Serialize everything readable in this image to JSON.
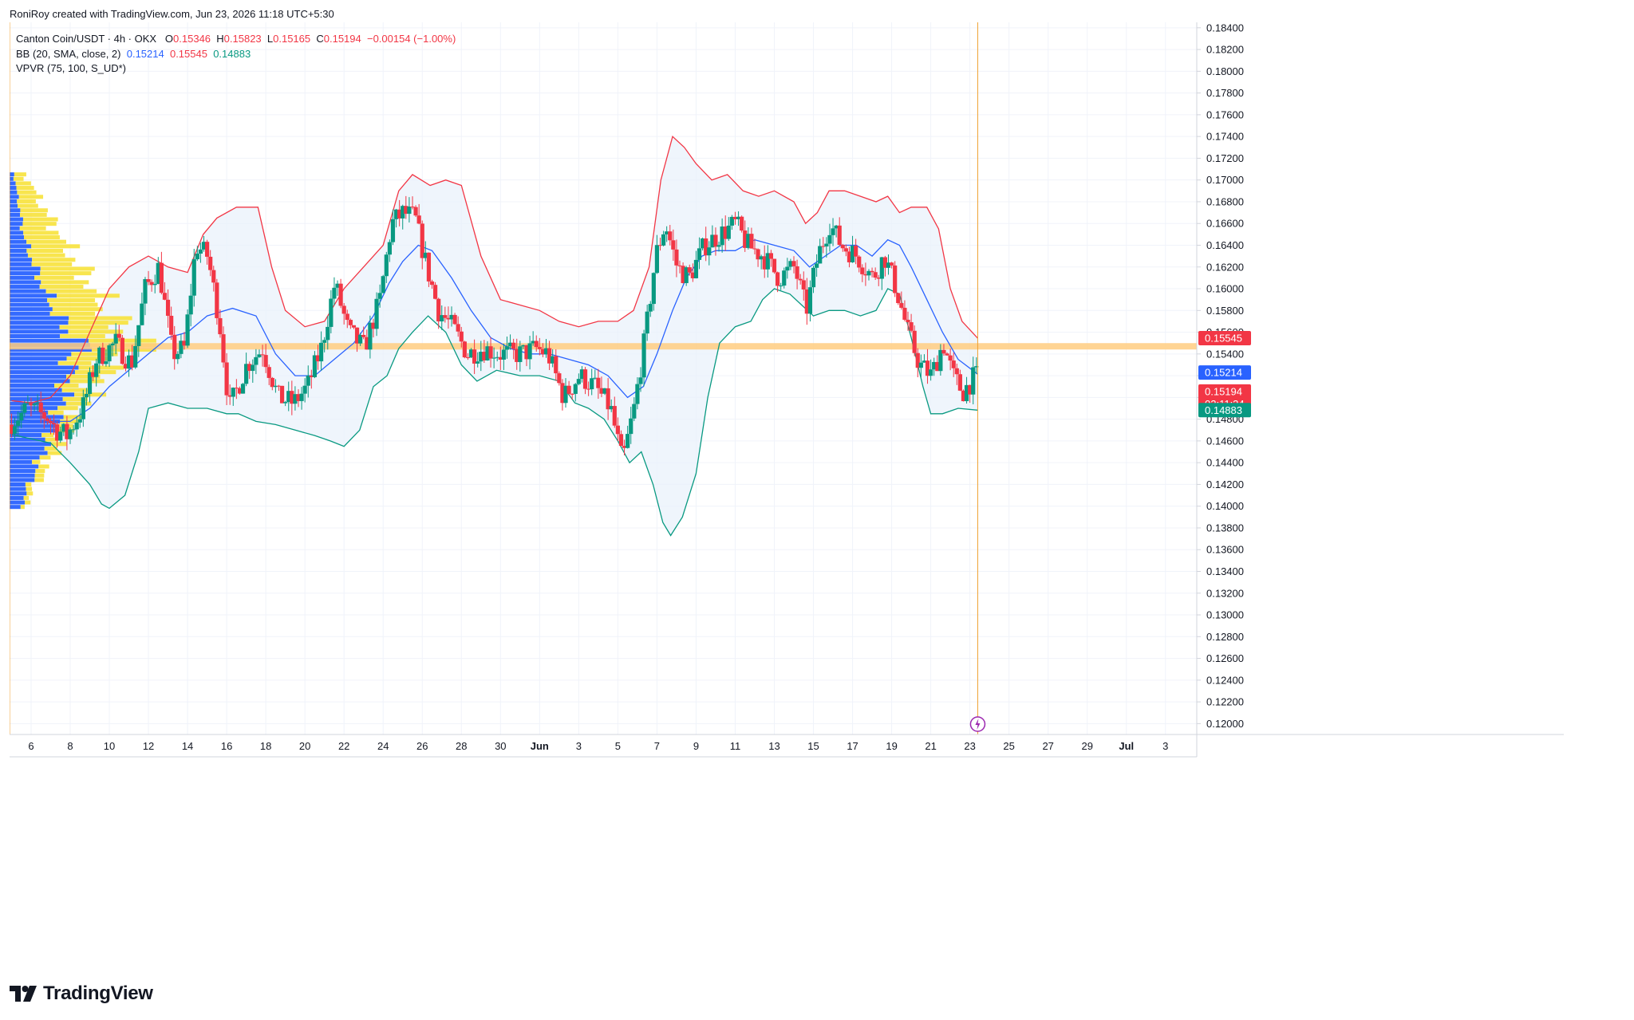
{
  "credit": "RoniRoy created with TradingView.com, Jun 23, 2026 11:18 UTC+5:30",
  "legend": {
    "symbol": "Canton Coin/USDT · 4h · OKX",
    "o_label": "O",
    "o_value": "0.15346",
    "h_label": "H",
    "h_value": "0.15823",
    "l_label": "L",
    "l_value": "0.15165",
    "c_label": "C",
    "c_value": "0.15194",
    "change": "−0.00154 (−1.00%)",
    "bb_label": "BB (20, SMA, close, 2)",
    "bb_basis": "0.15214",
    "bb_upper": "0.15545",
    "bb_lower": "0.14883",
    "vpvr_label": "VPVR (75, 100, S_UD*)"
  },
  "logo_text": "TradingView",
  "colors": {
    "up": "#089981",
    "down": "#f23645",
    "basis": "#2962ff",
    "upper_band": "#f23645",
    "lower_band": "#089981",
    "band_fill": "#eaf2fb",
    "vp_up": "#2962ff",
    "vp_down": "#f7e23b",
    "poc": "#ffcc80",
    "now_line": "#f0a030",
    "grid": "#f0f3fa"
  },
  "chart_data": {
    "type": "candlestick",
    "title": "Canton Coin/USDT · 4h · OKX",
    "ylim": [
      0.119,
      0.1845
    ],
    "y_ticks": [
      "0.18400",
      "0.18200",
      "0.18000",
      "0.17800",
      "0.17600",
      "0.17400",
      "0.17200",
      "0.17000",
      "0.16800",
      "0.16600",
      "0.16400",
      "0.16200",
      "0.16000",
      "0.15800",
      "0.15600",
      "0.15400",
      "0.15200",
      "0.15000",
      "0.14800",
      "0.14600",
      "0.14400",
      "0.14200",
      "0.14000",
      "0.13800",
      "0.13600",
      "0.13400",
      "0.13200",
      "0.13000",
      "0.12800",
      "0.12600",
      "0.12400",
      "0.12200",
      "0.12000"
    ],
    "x_ticks": [
      {
        "label": "6",
        "day": 6
      },
      {
        "label": "8",
        "day": 8
      },
      {
        "label": "10",
        "day": 10
      },
      {
        "label": "12",
        "day": 12
      },
      {
        "label": "14",
        "day": 14
      },
      {
        "label": "16",
        "day": 16
      },
      {
        "label": "18",
        "day": 18
      },
      {
        "label": "20",
        "day": 20
      },
      {
        "label": "22",
        "day": 22
      },
      {
        "label": "24",
        "day": 24
      },
      {
        "label": "26",
        "day": 26
      },
      {
        "label": "28",
        "day": 28
      },
      {
        "label": "30",
        "day": 30
      },
      {
        "label": "Jun",
        "day": 32
      },
      {
        "label": "3",
        "day": 34
      },
      {
        "label": "5",
        "day": 36
      },
      {
        "label": "7",
        "day": 38
      },
      {
        "label": "9",
        "day": 40
      },
      {
        "label": "11",
        "day": 42
      },
      {
        "label": "13",
        "day": 44
      },
      {
        "label": "15",
        "day": 46
      },
      {
        "label": "17",
        "day": 48
      },
      {
        "label": "19",
        "day": 50
      },
      {
        "label": "21",
        "day": 52
      },
      {
        "label": "23",
        "day": 54
      },
      {
        "label": "25",
        "day": 56
      },
      {
        "label": "27",
        "day": 58
      },
      {
        "label": "29",
        "day": 60
      },
      {
        "label": "Jul",
        "day": 62
      },
      {
        "label": "3",
        "day": 64
      }
    ],
    "x_range": [
      4.9,
      65.6
    ],
    "now_day": 54.4,
    "price_anchors": [
      [
        5.0,
        0.1475
      ],
      [
        6.0,
        0.149
      ],
      [
        7.0,
        0.1482
      ],
      [
        7.5,
        0.147
      ],
      [
        8.0,
        0.1465
      ],
      [
        8.8,
        0.149
      ],
      [
        9.5,
        0.1535
      ],
      [
        10.5,
        0.155
      ],
      [
        11.3,
        0.153
      ],
      [
        12.0,
        0.16
      ],
      [
        12.7,
        0.162
      ],
      [
        13.4,
        0.154
      ],
      [
        14.0,
        0.1545
      ],
      [
        14.6,
        0.164
      ],
      [
        15.2,
        0.163
      ],
      [
        15.8,
        0.157
      ],
      [
        16.3,
        0.149
      ],
      [
        17.2,
        0.153
      ],
      [
        18.0,
        0.1545
      ],
      [
        18.8,
        0.15
      ],
      [
        19.6,
        0.1495
      ],
      [
        20.3,
        0.151
      ],
      [
        21.0,
        0.1545
      ],
      [
        21.7,
        0.1605
      ],
      [
        22.4,
        0.156
      ],
      [
        23.2,
        0.1545
      ],
      [
        24.0,
        0.159
      ],
      [
        24.6,
        0.166
      ],
      [
        25.2,
        0.167
      ],
      [
        25.8,
        0.1665
      ],
      [
        26.4,
        0.162
      ],
      [
        27.0,
        0.158
      ],
      [
        27.7,
        0.1565
      ],
      [
        28.5,
        0.154
      ],
      [
        29.3,
        0.1545
      ],
      [
        30.2,
        0.154
      ],
      [
        31.2,
        0.154
      ],
      [
        32.0,
        0.1545
      ],
      [
        32.6,
        0.154
      ],
      [
        33.4,
        0.15
      ],
      [
        34.2,
        0.152
      ],
      [
        35.0,
        0.151
      ],
      [
        35.8,
        0.149
      ],
      [
        36.4,
        0.144
      ],
      [
        37.0,
        0.149
      ],
      [
        37.6,
        0.156
      ],
      [
        38.1,
        0.163
      ],
      [
        38.6,
        0.166
      ],
      [
        39.2,
        0.162
      ],
      [
        39.8,
        0.161
      ],
      [
        40.6,
        0.164
      ],
      [
        41.4,
        0.165
      ],
      [
        42.2,
        0.166
      ],
      [
        42.8,
        0.164
      ],
      [
        43.6,
        0.163
      ],
      [
        44.4,
        0.161
      ],
      [
        45.2,
        0.162
      ],
      [
        45.8,
        0.158
      ],
      [
        46.4,
        0.163
      ],
      [
        47.0,
        0.166
      ],
      [
        47.6,
        0.164
      ],
      [
        48.4,
        0.163
      ],
      [
        49.2,
        0.161
      ],
      [
        49.8,
        0.163
      ],
      [
        50.4,
        0.16
      ],
      [
        51.0,
        0.156
      ],
      [
        51.6,
        0.153
      ],
      [
        52.2,
        0.152
      ],
      [
        52.8,
        0.155
      ],
      [
        53.3,
        0.152
      ],
      [
        53.8,
        0.1505
      ],
      [
        54.4,
        0.1519
      ]
    ],
    "bb_upper": [
      [
        5.0,
        0.1497
      ],
      [
        6.0,
        0.1495
      ],
      [
        7.0,
        0.15
      ],
      [
        8.0,
        0.152
      ],
      [
        9.0,
        0.156
      ],
      [
        10.0,
        0.16
      ],
      [
        11.0,
        0.162
      ],
      [
        12.0,
        0.163
      ],
      [
        13.0,
        0.162
      ],
      [
        14.0,
        0.1615
      ],
      [
        14.8,
        0.165
      ],
      [
        15.5,
        0.1665
      ],
      [
        16.5,
        0.1675
      ],
      [
        17.6,
        0.1675
      ],
      [
        18.3,
        0.162
      ],
      [
        19.0,
        0.158
      ],
      [
        20.0,
        0.1565
      ],
      [
        21.0,
        0.157
      ],
      [
        22.0,
        0.16
      ],
      [
        23.0,
        0.162
      ],
      [
        24.0,
        0.164
      ],
      [
        24.8,
        0.169
      ],
      [
        25.5,
        0.1705
      ],
      [
        26.4,
        0.1695
      ],
      [
        27.2,
        0.17
      ],
      [
        28.0,
        0.1695
      ],
      [
        29.0,
        0.163
      ],
      [
        30.0,
        0.159
      ],
      [
        31.0,
        0.1585
      ],
      [
        32.0,
        0.158
      ],
      [
        33.0,
        0.157
      ],
      [
        34.0,
        0.1565
      ],
      [
        35.0,
        0.157
      ],
      [
        36.0,
        0.157
      ],
      [
        36.8,
        0.158
      ],
      [
        37.6,
        0.162
      ],
      [
        38.2,
        0.17
      ],
      [
        38.8,
        0.174
      ],
      [
        39.4,
        0.173
      ],
      [
        40.0,
        0.1715
      ],
      [
        40.8,
        0.17
      ],
      [
        41.6,
        0.1705
      ],
      [
        42.4,
        0.169
      ],
      [
        43.2,
        0.1685
      ],
      [
        44.0,
        0.169
      ],
      [
        45.0,
        0.168
      ],
      [
        45.6,
        0.166
      ],
      [
        46.2,
        0.167
      ],
      [
        46.8,
        0.169
      ],
      [
        47.6,
        0.169
      ],
      [
        48.4,
        0.1685
      ],
      [
        49.2,
        0.168
      ],
      [
        49.8,
        0.1685
      ],
      [
        50.4,
        0.167
      ],
      [
        51.0,
        0.1675
      ],
      [
        51.8,
        0.1675
      ],
      [
        52.4,
        0.1655
      ],
      [
        53.0,
        0.16
      ],
      [
        53.6,
        0.157
      ],
      [
        54.4,
        0.15545
      ]
    ],
    "bb_basis": [
      [
        5.0,
        0.1482
      ],
      [
        6.0,
        0.1478
      ],
      [
        7.0,
        0.1478
      ],
      [
        8.0,
        0.1478
      ],
      [
        9.0,
        0.149
      ],
      [
        10.0,
        0.151
      ],
      [
        11.0,
        0.1525
      ],
      [
        12.0,
        0.154
      ],
      [
        13.0,
        0.1555
      ],
      [
        14.0,
        0.156
      ],
      [
        15.0,
        0.1575
      ],
      [
        16.3,
        0.1582
      ],
      [
        17.5,
        0.1575
      ],
      [
        18.5,
        0.154
      ],
      [
        19.5,
        0.152
      ],
      [
        20.5,
        0.152
      ],
      [
        21.5,
        0.1535
      ],
      [
        22.5,
        0.155
      ],
      [
        23.5,
        0.1575
      ],
      [
        24.3,
        0.1605
      ],
      [
        25.0,
        0.1625
      ],
      [
        25.8,
        0.164
      ],
      [
        26.5,
        0.1635
      ],
      [
        27.5,
        0.161
      ],
      [
        28.5,
        0.158
      ],
      [
        29.5,
        0.1555
      ],
      [
        30.5,
        0.1545
      ],
      [
        31.5,
        0.154
      ],
      [
        32.5,
        0.154
      ],
      [
        33.5,
        0.1535
      ],
      [
        34.5,
        0.153
      ],
      [
        35.5,
        0.152
      ],
      [
        36.5,
        0.15
      ],
      [
        37.3,
        0.151
      ],
      [
        38.0,
        0.154
      ],
      [
        38.8,
        0.158
      ],
      [
        39.5,
        0.161
      ],
      [
        40.3,
        0.163
      ],
      [
        41.0,
        0.1635
      ],
      [
        42.0,
        0.1635
      ],
      [
        43.0,
        0.1645
      ],
      [
        44.0,
        0.164
      ],
      [
        45.0,
        0.1635
      ],
      [
        45.8,
        0.162
      ],
      [
        46.6,
        0.163
      ],
      [
        47.4,
        0.164
      ],
      [
        48.2,
        0.164
      ],
      [
        49.0,
        0.163
      ],
      [
        49.8,
        0.1645
      ],
      [
        50.4,
        0.164
      ],
      [
        51.0,
        0.162
      ],
      [
        51.8,
        0.159
      ],
      [
        52.6,
        0.156
      ],
      [
        53.4,
        0.1535
      ],
      [
        54.4,
        0.15214
      ]
    ],
    "bb_lower": [
      [
        5.0,
        0.1466
      ],
      [
        6.0,
        0.1462
      ],
      [
        7.0,
        0.1458
      ],
      [
        8.0,
        0.144
      ],
      [
        9.0,
        0.142
      ],
      [
        9.6,
        0.1402
      ],
      [
        10.0,
        0.1398
      ],
      [
        10.8,
        0.141
      ],
      [
        11.5,
        0.145
      ],
      [
        12.0,
        0.149
      ],
      [
        13.0,
        0.1495
      ],
      [
        14.0,
        0.149
      ],
      [
        15.0,
        0.149
      ],
      [
        16.0,
        0.1485
      ],
      [
        16.6,
        0.1485
      ],
      [
        17.5,
        0.1478
      ],
      [
        18.5,
        0.1475
      ],
      [
        19.5,
        0.147
      ],
      [
        20.5,
        0.1465
      ],
      [
        21.3,
        0.146
      ],
      [
        22.0,
        0.1455
      ],
      [
        22.8,
        0.147
      ],
      [
        23.5,
        0.151
      ],
      [
        24.2,
        0.152
      ],
      [
        24.8,
        0.1545
      ],
      [
        25.5,
        0.156
      ],
      [
        26.3,
        0.1575
      ],
      [
        27.2,
        0.156
      ],
      [
        28.0,
        0.153
      ],
      [
        28.8,
        0.1515
      ],
      [
        29.8,
        0.1525
      ],
      [
        31.0,
        0.152
      ],
      [
        32.0,
        0.152
      ],
      [
        33.0,
        0.1515
      ],
      [
        33.8,
        0.1495
      ],
      [
        34.5,
        0.149
      ],
      [
        35.3,
        0.148
      ],
      [
        36.0,
        0.146
      ],
      [
        36.6,
        0.144
      ],
      [
        37.2,
        0.145
      ],
      [
        37.8,
        0.142
      ],
      [
        38.3,
        0.1385
      ],
      [
        38.7,
        0.1373
      ],
      [
        39.3,
        0.139
      ],
      [
        40.0,
        0.143
      ],
      [
        40.6,
        0.15
      ],
      [
        41.2,
        0.155
      ],
      [
        42.0,
        0.1565
      ],
      [
        42.8,
        0.157
      ],
      [
        43.4,
        0.159
      ],
      [
        44.0,
        0.16
      ],
      [
        44.8,
        0.1595
      ],
      [
        45.4,
        0.1585
      ],
      [
        46.0,
        0.1575
      ],
      [
        46.8,
        0.158
      ],
      [
        47.6,
        0.158
      ],
      [
        48.4,
        0.1575
      ],
      [
        49.2,
        0.158
      ],
      [
        49.8,
        0.16
      ],
      [
        50.4,
        0.1595
      ],
      [
        51.0,
        0.1555
      ],
      [
        51.6,
        0.151
      ],
      [
        52.0,
        0.1485
      ],
      [
        52.6,
        0.1485
      ],
      [
        53.4,
        0.149
      ],
      [
        54.4,
        0.14883
      ]
    ],
    "vpvr": {
      "price_range": [
        0.1397,
        0.1707
      ],
      "rows": 75,
      "max_width_days": 7.5
    },
    "poc_price": 0.1547,
    "price_labels": [
      {
        "text": "0.15545",
        "price": 0.15545,
        "color": "#f23645"
      },
      {
        "text": "0.15214",
        "price": 0.15214,
        "color": "#2962ff"
      },
      {
        "text": "0.15194",
        "price": 0.15194,
        "color": "#f23645",
        "sub": "02:11:34"
      },
      {
        "text": "0.14883",
        "price": 0.14883,
        "color": "#089981"
      }
    ]
  }
}
